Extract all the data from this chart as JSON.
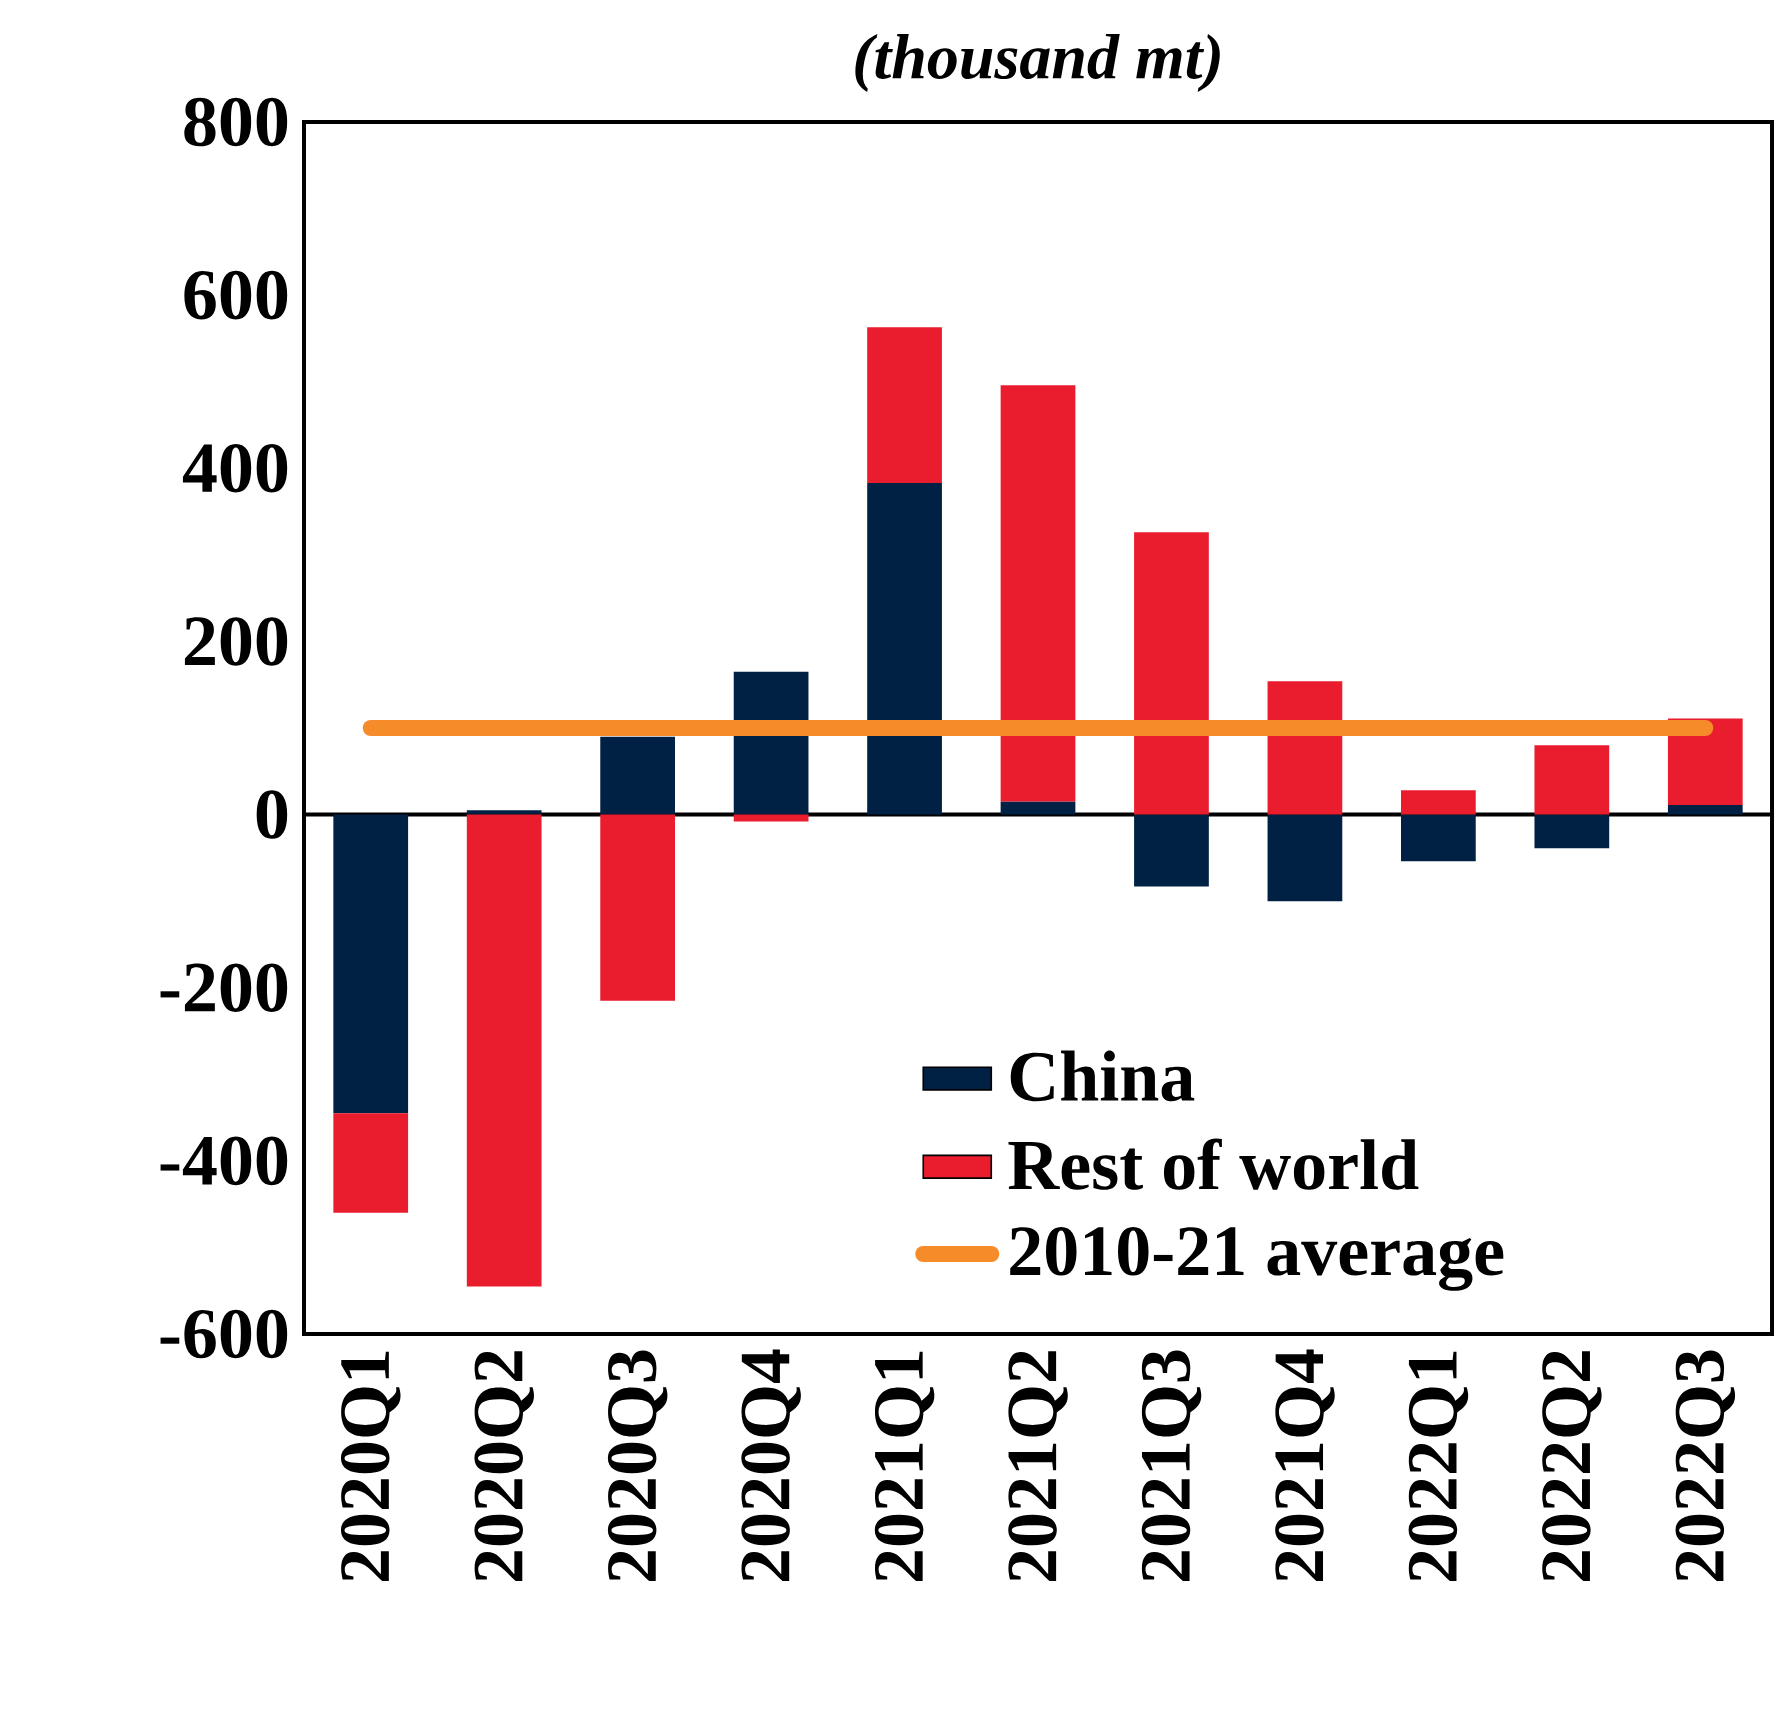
{
  "chart_data": {
    "type": "bar",
    "stacked": true,
    "title": "(thousand mt)",
    "categories": [
      "2020Q1",
      "2020Q2",
      "2020Q3",
      "2020Q4",
      "2021Q1",
      "2021Q2",
      "2021Q3",
      "2021Q4",
      "2022Q1",
      "2022Q2",
      "2022Q3"
    ],
    "series": [
      {
        "name": "China",
        "color": "#002144",
        "values": [
          -345,
          5,
          90,
          165,
          383,
          15,
          -83,
          -100,
          -54,
          -39,
          11
        ]
      },
      {
        "name": "Rest of world",
        "color": "#ea1d2f",
        "values": [
          -115,
          -545,
          -215,
          -8,
          180,
          481,
          326,
          154,
          28,
          80,
          100
        ]
      },
      {
        "name": "2010-21 average",
        "type": "line",
        "color": "#f68b29",
        "values": [
          100,
          100,
          100,
          100,
          100,
          100,
          100,
          100,
          100,
          100,
          100
        ]
      }
    ],
    "ylim": [
      -600,
      800
    ],
    "yticks": [
      -600,
      -400,
      -200,
      0,
      200,
      400,
      600,
      800
    ],
    "legend": "bottom"
  }
}
